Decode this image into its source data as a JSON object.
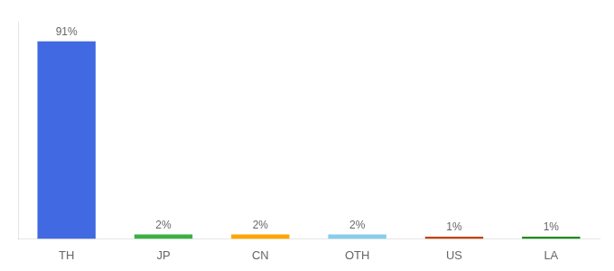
{
  "chart_data": {
    "type": "bar",
    "categories": [
      "TH",
      "JP",
      "CN",
      "OTH",
      "US",
      "LA"
    ],
    "values": [
      91,
      2,
      2,
      2,
      1,
      1
    ],
    "value_labels": [
      "91%",
      "2%",
      "2%",
      "2%",
      "1%",
      "1%"
    ],
    "colors": [
      "#4169e1",
      "#3cb043",
      "#ffa500",
      "#87ceeb",
      "#c1440e",
      "#228b22"
    ],
    "ylim": [
      0,
      100
    ],
    "grid": false,
    "data_labels": true,
    "tick_labels": "x"
  }
}
